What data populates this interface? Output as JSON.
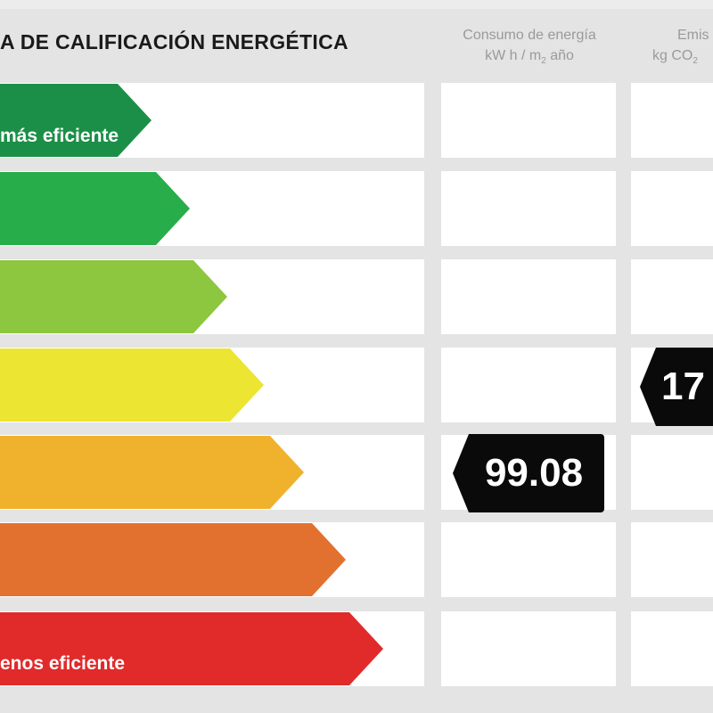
{
  "header": {
    "title": "A DE CALIFICACIÓN ENERGÉTICA",
    "consumo_line1": "Consumo de energía",
    "consumo_line2": "kW h / m",
    "consumo_sub": "2",
    "consumo_line2_end": " año",
    "emis_line1": "Emis",
    "emis_line2": "kg CO",
    "emis_sub": "2"
  },
  "scale": {
    "top_label": "más eficiente",
    "bottom_label": "enos eficiente",
    "colors": [
      "#1b8f47",
      "#27ad4a",
      "#8dc63f",
      "#ece532",
      "#f0b22c",
      "#e2712f",
      "#e12a2a"
    ]
  },
  "ratings": {
    "consumo_value": "99.08",
    "consumo_row": 5,
    "emisiones_value": "17",
    "emisiones_row": 4
  }
}
